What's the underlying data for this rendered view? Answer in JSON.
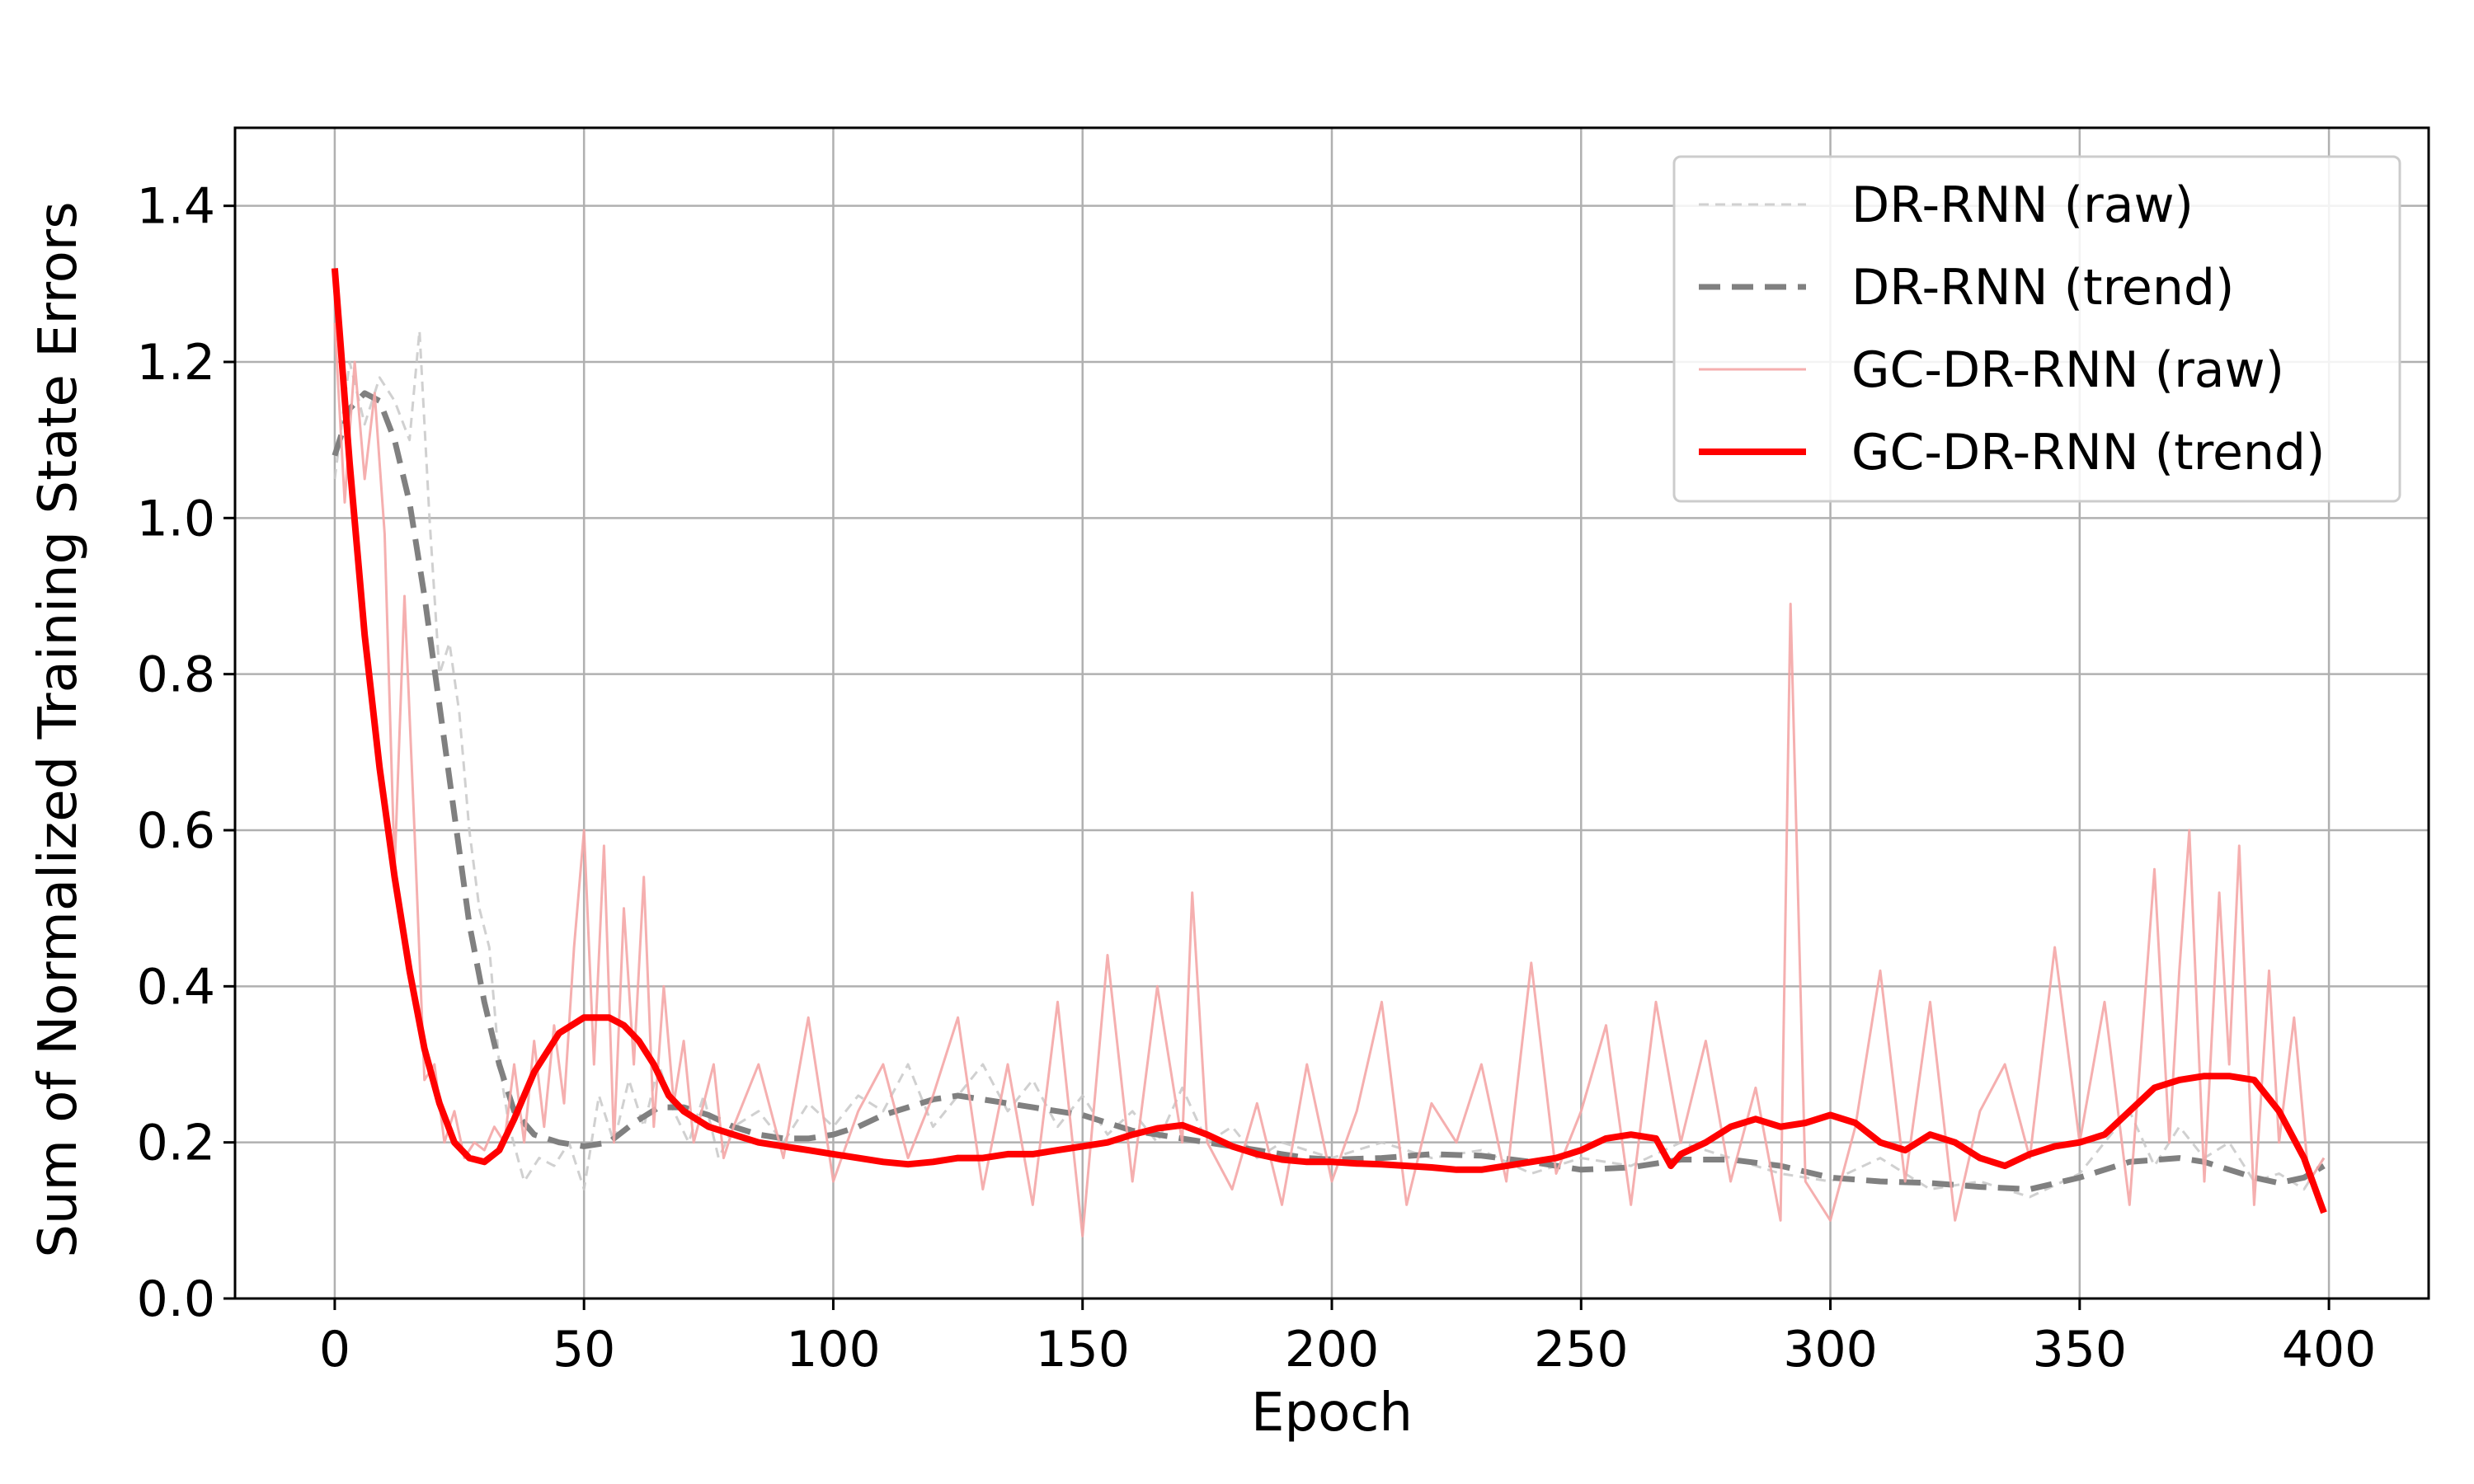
{
  "chart_data": {
    "type": "line",
    "xlabel": "Epoch",
    "ylabel": "Sum of Normalized Training State Errors",
    "xlim": [
      -20,
      420
    ],
    "ylim": [
      0.0,
      1.5
    ],
    "xticks": [
      0,
      50,
      100,
      150,
      200,
      250,
      300,
      350,
      400
    ],
    "xtick_labels": [
      "0",
      "50",
      "100",
      "150",
      "200",
      "250",
      "300",
      "350",
      "400"
    ],
    "yticks": [
      0.0,
      0.2,
      0.4,
      0.6,
      0.8,
      1.0,
      1.2,
      1.4
    ],
    "ytick_labels": [
      "0.0",
      "0.2",
      "0.4",
      "0.6",
      "0.8",
      "1.0",
      "1.2",
      "1.4"
    ],
    "grid": true,
    "legend_position": "top-right",
    "series": [
      {
        "name": "DR-RNN (raw)",
        "color": "#c8c8c8",
        "style": "dashed",
        "width": 3,
        "opacity": 0.85,
        "x": [
          0,
          3,
          6,
          9,
          12,
          15,
          17,
          19,
          21,
          23,
          25,
          27,
          29,
          31,
          33,
          35,
          38,
          41,
          44,
          47,
          50,
          53,
          56,
          59,
          62,
          65,
          68,
          71,
          74,
          77,
          80,
          85,
          90,
          95,
          100,
          105,
          110,
          115,
          120,
          125,
          130,
          135,
          140,
          145,
          150,
          155,
          160,
          165,
          170,
          175,
          180,
          185,
          190,
          195,
          200,
          210,
          220,
          230,
          240,
          250,
          260,
          270,
          280,
          290,
          300,
          310,
          320,
          330,
          340,
          350,
          355,
          360,
          365,
          370,
          375,
          380,
          385,
          390,
          395,
          399
        ],
        "y": [
          1.05,
          1.2,
          1.12,
          1.18,
          1.15,
          1.1,
          1.24,
          1.0,
          0.8,
          0.84,
          0.75,
          0.6,
          0.5,
          0.45,
          0.3,
          0.22,
          0.15,
          0.18,
          0.17,
          0.2,
          0.14,
          0.26,
          0.2,
          0.28,
          0.22,
          0.3,
          0.24,
          0.2,
          0.26,
          0.18,
          0.22,
          0.24,
          0.2,
          0.25,
          0.22,
          0.26,
          0.24,
          0.3,
          0.22,
          0.26,
          0.3,
          0.24,
          0.28,
          0.22,
          0.26,
          0.21,
          0.24,
          0.2,
          0.27,
          0.2,
          0.22,
          0.18,
          0.2,
          0.19,
          0.18,
          0.2,
          0.18,
          0.19,
          0.16,
          0.18,
          0.17,
          0.2,
          0.18,
          0.16,
          0.15,
          0.18,
          0.14,
          0.15,
          0.13,
          0.16,
          0.2,
          0.24,
          0.17,
          0.22,
          0.18,
          0.2,
          0.15,
          0.16,
          0.14,
          0.18
        ]
      },
      {
        "name": "DR-RNN (trend)",
        "color": "#808080",
        "style": "dashed",
        "width": 7,
        "opacity": 1,
        "x": [
          0,
          3,
          6,
          9,
          12,
          15,
          18,
          21,
          24,
          27,
          30,
          33,
          36,
          40,
          45,
          50,
          55,
          60,
          65,
          70,
          75,
          80,
          85,
          90,
          95,
          100,
          105,
          110,
          115,
          120,
          125,
          130,
          135,
          140,
          145,
          150,
          155,
          160,
          165,
          170,
          175,
          180,
          185,
          190,
          195,
          200,
          210,
          220,
          230,
          240,
          250,
          260,
          270,
          280,
          290,
          300,
          310,
          320,
          330,
          340,
          350,
          360,
          370,
          375,
          380,
          385,
          390,
          395,
          399
        ],
        "y": [
          1.08,
          1.14,
          1.16,
          1.15,
          1.1,
          1.02,
          0.9,
          0.76,
          0.62,
          0.48,
          0.38,
          0.3,
          0.24,
          0.21,
          0.2,
          0.195,
          0.2,
          0.225,
          0.245,
          0.245,
          0.235,
          0.22,
          0.21,
          0.205,
          0.205,
          0.21,
          0.22,
          0.235,
          0.245,
          0.255,
          0.26,
          0.255,
          0.25,
          0.245,
          0.24,
          0.235,
          0.225,
          0.215,
          0.21,
          0.205,
          0.2,
          0.195,
          0.19,
          0.185,
          0.18,
          0.178,
          0.18,
          0.185,
          0.183,
          0.175,
          0.165,
          0.168,
          0.178,
          0.178,
          0.17,
          0.155,
          0.15,
          0.148,
          0.143,
          0.14,
          0.155,
          0.175,
          0.18,
          0.175,
          0.165,
          0.155,
          0.148,
          0.155,
          0.17
        ]
      },
      {
        "name": "GC-DR-RNN (raw)",
        "color": "#f4a6a6",
        "style": "solid",
        "width": 3,
        "opacity": 0.9,
        "x": [
          0,
          2,
          4,
          6,
          8,
          10,
          12,
          14,
          16,
          18,
          20,
          22,
          24,
          26,
          28,
          30,
          32,
          34,
          36,
          38,
          40,
          42,
          44,
          46,
          48,
          50,
          52,
          54,
          56,
          58,
          60,
          62,
          64,
          66,
          68,
          70,
          72,
          74,
          76,
          78,
          80,
          85,
          90,
          95,
          100,
          105,
          110,
          115,
          120,
          125,
          130,
          135,
          140,
          145,
          150,
          155,
          160,
          165,
          170,
          172,
          175,
          180,
          185,
          190,
          195,
          200,
          205,
          210,
          215,
          220,
          225,
          230,
          235,
          240,
          245,
          250,
          255,
          260,
          265,
          270,
          275,
          280,
          285,
          290,
          292,
          295,
          300,
          305,
          310,
          315,
          320,
          325,
          330,
          335,
          340,
          345,
          350,
          355,
          360,
          365,
          368,
          370,
          372,
          375,
          378,
          380,
          382,
          385,
          388,
          390,
          393,
          396,
          399
        ],
        "y": [
          1.25,
          1.02,
          1.2,
          1.05,
          1.16,
          0.98,
          0.55,
          0.9,
          0.6,
          0.28,
          0.3,
          0.2,
          0.24,
          0.18,
          0.2,
          0.19,
          0.22,
          0.2,
          0.3,
          0.2,
          0.33,
          0.22,
          0.35,
          0.25,
          0.45,
          0.6,
          0.3,
          0.58,
          0.2,
          0.5,
          0.3,
          0.54,
          0.22,
          0.4,
          0.25,
          0.33,
          0.2,
          0.25,
          0.3,
          0.18,
          0.22,
          0.3,
          0.18,
          0.36,
          0.15,
          0.24,
          0.3,
          0.18,
          0.26,
          0.36,
          0.14,
          0.3,
          0.12,
          0.38,
          0.08,
          0.44,
          0.15,
          0.4,
          0.2,
          0.52,
          0.2,
          0.14,
          0.25,
          0.12,
          0.3,
          0.15,
          0.24,
          0.38,
          0.12,
          0.25,
          0.2,
          0.3,
          0.15,
          0.43,
          0.16,
          0.24,
          0.35,
          0.12,
          0.38,
          0.2,
          0.33,
          0.15,
          0.27,
          0.1,
          0.89,
          0.15,
          0.1,
          0.22,
          0.42,
          0.15,
          0.38,
          0.1,
          0.24,
          0.3,
          0.18,
          0.45,
          0.2,
          0.38,
          0.12,
          0.55,
          0.2,
          0.42,
          0.6,
          0.15,
          0.52,
          0.3,
          0.58,
          0.12,
          0.42,
          0.2,
          0.36,
          0.15,
          0.18
        ]
      },
      {
        "name": "GC-DR-RNN (trend)",
        "color": "#ff0000",
        "style": "solid",
        "width": 8,
        "opacity": 1,
        "x": [
          0,
          3,
          6,
          9,
          12,
          15,
          18,
          21,
          24,
          27,
          30,
          33,
          36,
          40,
          45,
          50,
          55,
          58,
          61,
          64,
          67,
          70,
          75,
          80,
          85,
          90,
          95,
          100,
          105,
          110,
          115,
          120,
          125,
          130,
          135,
          140,
          145,
          150,
          155,
          160,
          165,
          170,
          175,
          180,
          185,
          190,
          195,
          200,
          205,
          210,
          215,
          220,
          225,
          230,
          235,
          240,
          245,
          250,
          255,
          260,
          265,
          268,
          270,
          275,
          280,
          285,
          290,
          295,
          300,
          305,
          310,
          315,
          320,
          325,
          330,
          335,
          340,
          345,
          350,
          355,
          360,
          365,
          370,
          375,
          380,
          385,
          390,
          395,
          399
        ],
        "y": [
          1.32,
          1.07,
          0.85,
          0.68,
          0.54,
          0.42,
          0.32,
          0.25,
          0.2,
          0.18,
          0.175,
          0.19,
          0.23,
          0.29,
          0.34,
          0.36,
          0.36,
          0.35,
          0.33,
          0.3,
          0.26,
          0.24,
          0.22,
          0.21,
          0.2,
          0.195,
          0.19,
          0.185,
          0.18,
          0.175,
          0.172,
          0.175,
          0.18,
          0.18,
          0.185,
          0.185,
          0.19,
          0.195,
          0.2,
          0.21,
          0.218,
          0.222,
          0.21,
          0.195,
          0.185,
          0.178,
          0.175,
          0.175,
          0.173,
          0.172,
          0.17,
          0.168,
          0.165,
          0.165,
          0.17,
          0.175,
          0.18,
          0.19,
          0.205,
          0.21,
          0.205,
          0.17,
          0.185,
          0.2,
          0.22,
          0.23,
          0.22,
          0.225,
          0.235,
          0.225,
          0.2,
          0.19,
          0.21,
          0.2,
          0.18,
          0.17,
          0.185,
          0.195,
          0.2,
          0.21,
          0.24,
          0.27,
          0.28,
          0.285,
          0.285,
          0.28,
          0.24,
          0.18,
          0.11
        ]
      }
    ]
  }
}
